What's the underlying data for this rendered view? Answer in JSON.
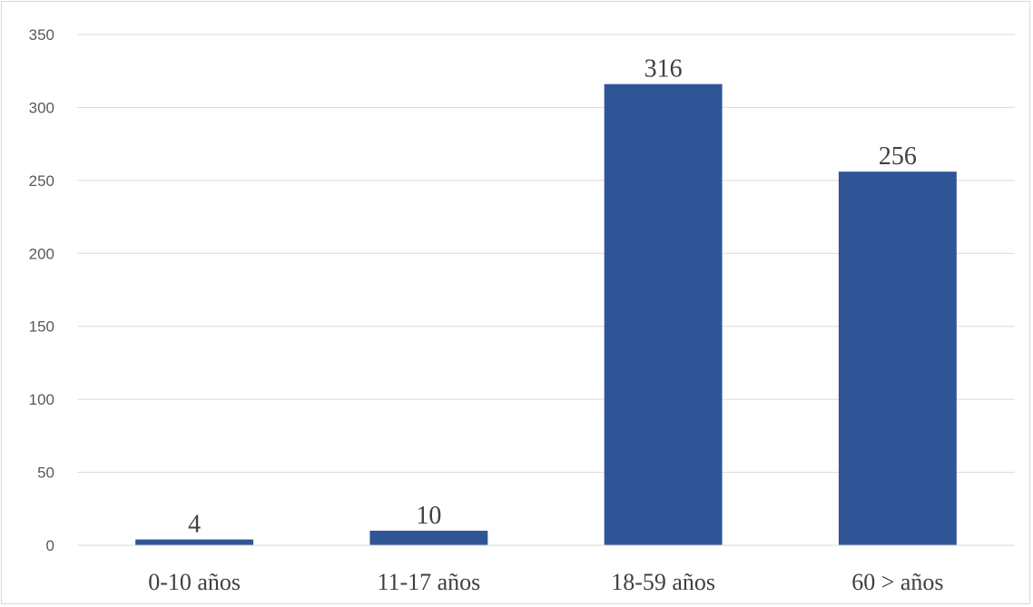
{
  "chart_data": {
    "type": "bar",
    "title": "",
    "xlabel": "",
    "ylabel": "",
    "categories": [
      "0-10 años",
      "11-17 años",
      "18-59 años",
      "60 > años"
    ],
    "values": [
      4,
      10,
      316,
      256
    ],
    "data_labels": [
      "4",
      "10",
      "316",
      "256"
    ],
    "ylim": [
      0,
      350
    ],
    "yticks": [
      0,
      50,
      100,
      150,
      200,
      250,
      300,
      350
    ],
    "ytick_labels": [
      "0",
      "50",
      "100",
      "150",
      "200",
      "250",
      "300",
      "350"
    ],
    "grid": true,
    "legend": "none",
    "bar_color": "#2f5597",
    "grid_color": "#d9d9d9"
  }
}
